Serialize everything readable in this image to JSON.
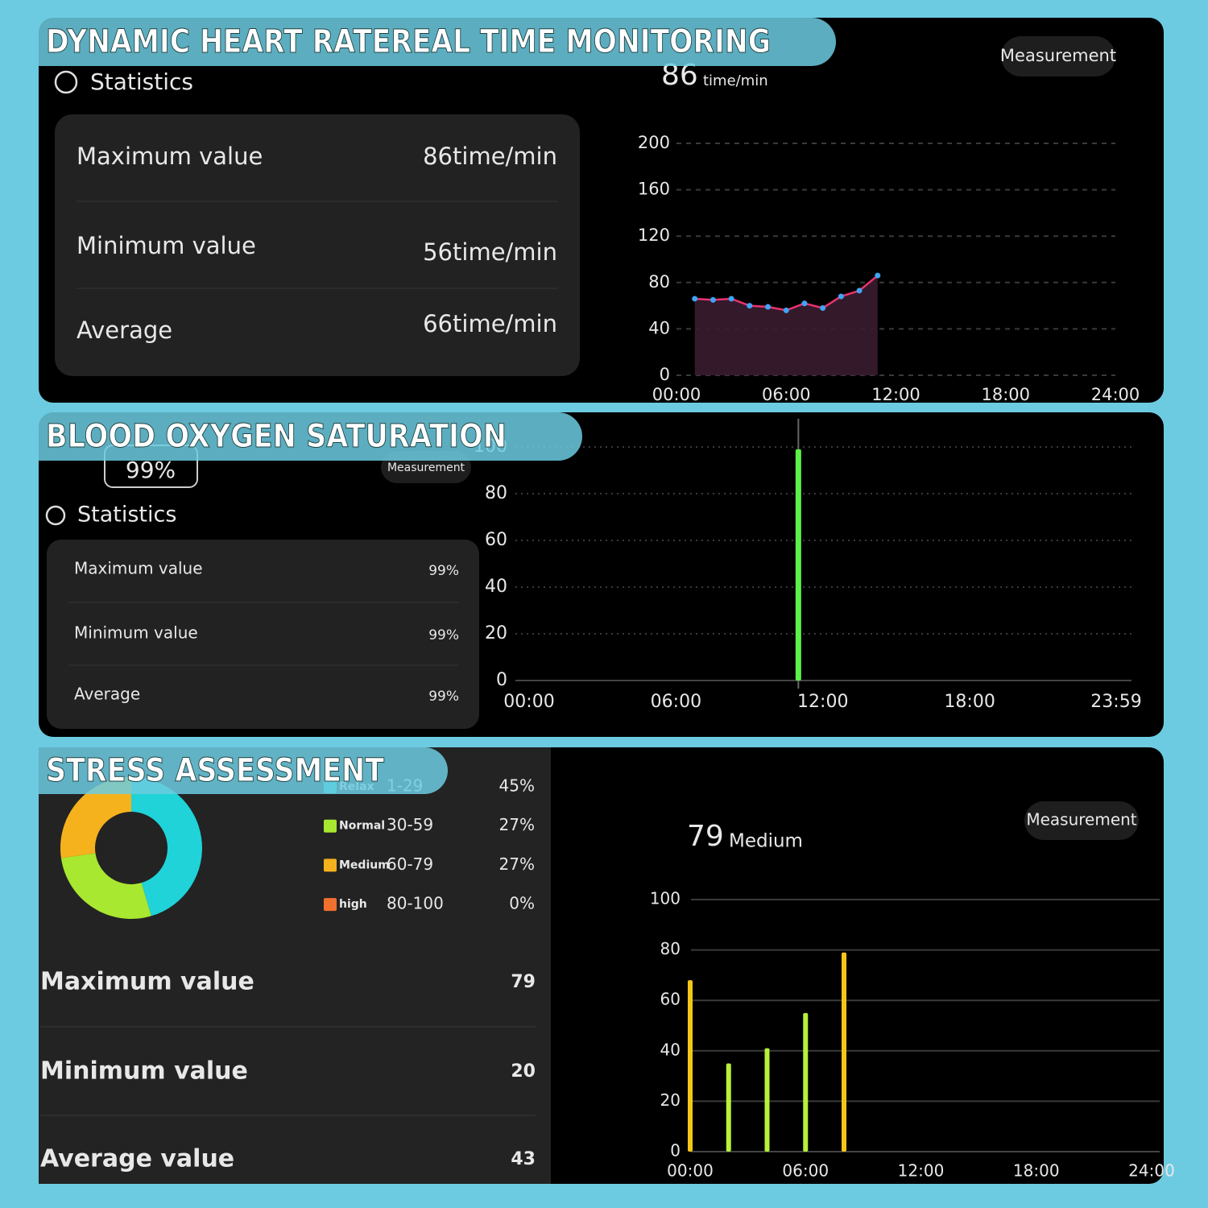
{
  "panels": [
    {
      "title": "DYNAMIC HEART RATEREAL TIME MONITORING",
      "section": "Statistics",
      "button": "Measurement",
      "reading": "86",
      "unit": "time/min",
      "stats": [
        [
          "Maximum value",
          "86time/min"
        ],
        [
          "Minimum value",
          "56time/min"
        ],
        [
          "Average",
          "66time/min"
        ]
      ]
    },
    {
      "title": "BLOOD OXYGEN SATURATION",
      "section": "Statistics",
      "button": "Measurement",
      "reading": "99%",
      "stats": [
        [
          "Maximum value",
          "99%"
        ],
        [
          "Minimum value",
          "99%"
        ],
        [
          "Average",
          "99%"
        ]
      ]
    },
    {
      "title": "STRESS ASSESSMENT",
      "button": "Measurement",
      "reading": "79",
      "level": "Medium",
      "stats": [
        [
          "Maximum value",
          "79"
        ],
        [
          "Minimum value",
          "20"
        ],
        [
          "Average value",
          "43"
        ]
      ]
    }
  ],
  "chart_data": [
    {
      "type": "line",
      "x": [
        1,
        2,
        3,
        4,
        5,
        6,
        7,
        8,
        9,
        10,
        11
      ],
      "values": [
        66,
        65,
        66,
        60,
        59,
        56,
        62,
        58,
        68,
        73,
        86
      ],
      "color": "#e8336f",
      "marker_color": "#3fa4f5",
      "fill": "#3a1c30",
      "xlim": [
        0,
        24
      ],
      "xticks": [
        {
          "value": 0,
          "label": "00:00"
        },
        {
          "value": 6,
          "label": "06:00"
        },
        {
          "value": 12,
          "label": "12:00"
        },
        {
          "value": 18,
          "label": "18:00"
        },
        {
          "value": 24,
          "label": "24:00"
        }
      ],
      "ylim": [
        0,
        200
      ],
      "yticks": [
        0,
        40,
        80,
        120,
        160,
        200
      ],
      "grid": true
    },
    {
      "type": "bar",
      "x": [
        11
      ],
      "values": [
        99
      ],
      "color": "#5ef04a",
      "xlim": [
        0,
        23.983
      ],
      "xticks": [
        {
          "value": 0,
          "label": "00:00"
        },
        {
          "value": 6,
          "label": "06:00"
        },
        {
          "value": 12,
          "label": "12:00"
        },
        {
          "value": 18,
          "label": "18:00"
        },
        {
          "value": 23.983,
          "label": "23:59"
        }
      ],
      "ylim": [
        0,
        100
      ],
      "yticks": [
        0,
        20,
        40,
        60,
        80,
        100
      ],
      "grid": true
    },
    {
      "type": "pie",
      "categories": [
        "Relax",
        "Normal",
        "Medium",
        "high"
      ],
      "ranges": [
        "1-29",
        "30-59",
        "60-79",
        "80-100"
      ],
      "values": [
        45,
        27,
        27,
        0
      ],
      "value_labels": [
        "45%",
        "27%",
        "27%",
        "0%"
      ],
      "colors": [
        "#1fd3d8",
        "#a8e830",
        "#f6b21d",
        "#f07030"
      ]
    },
    {
      "type": "bar",
      "x": [
        0,
        2,
        4,
        6,
        8
      ],
      "values": [
        68,
        35,
        41,
        55,
        79
      ],
      "colors": [
        "#f5c518",
        "#b8f03a",
        "#b8f03a",
        "#b8f03a",
        "#f5c518"
      ],
      "xlim": [
        0,
        24
      ],
      "xticks": [
        {
          "value": 0,
          "label": "00:00"
        },
        {
          "value": 6,
          "label": "06:00"
        },
        {
          "value": 12,
          "label": "12:00"
        },
        {
          "value": 18,
          "label": "18:00"
        },
        {
          "value": 24,
          "label": "24:00"
        }
      ],
      "ylim": [
        0,
        100
      ],
      "yticks": [
        0,
        20,
        40,
        60,
        80,
        100
      ],
      "grid": true
    }
  ]
}
